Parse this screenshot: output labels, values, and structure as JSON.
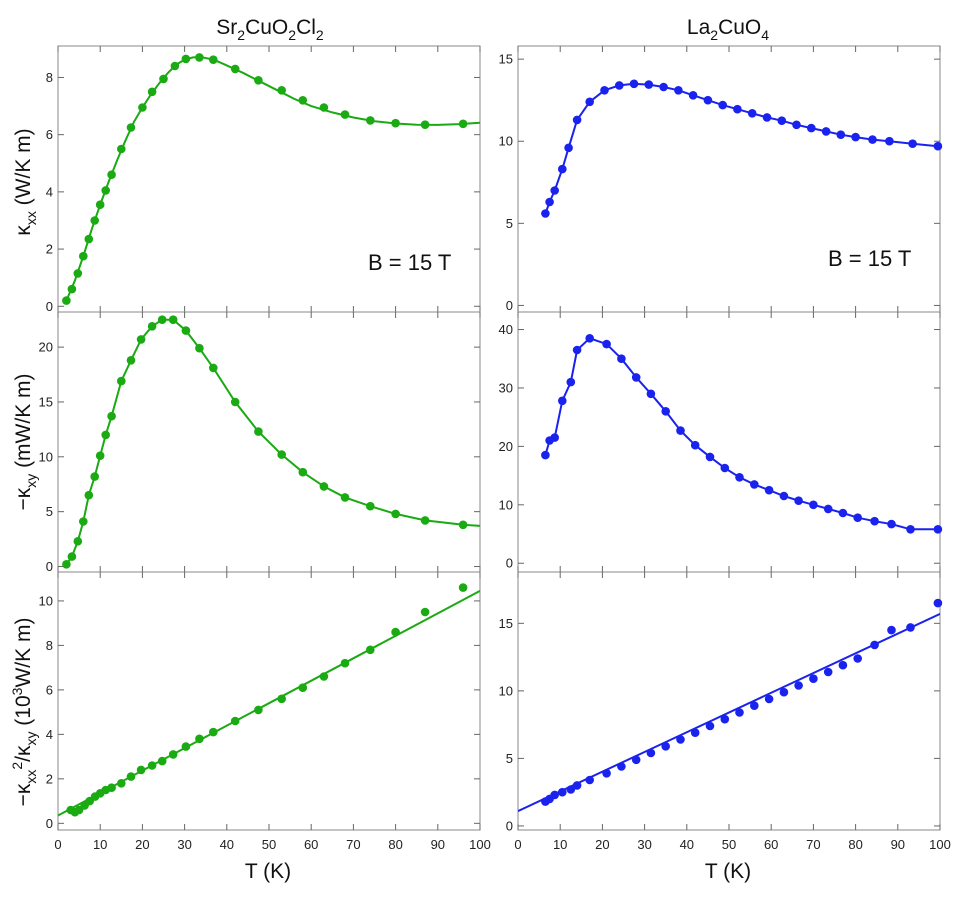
{
  "colors": {
    "green": "#1aaa12",
    "blue": "#1a22ee",
    "frame": "#888888"
  },
  "columns": [
    {
      "title_main": "Sr",
      "title_sub1": "2",
      "title_mid": "CuO",
      "title_sub2": "2",
      "title_end": "Cl",
      "title_sub3": "2"
    },
    {
      "title_main": "La",
      "title_sub1": "2",
      "title_mid": "CuO",
      "title_sub2": "4",
      "title_end": "",
      "title_sub3": ""
    }
  ],
  "row_labels": {
    "r0": {
      "kappa": "κ",
      "sub": "xx",
      "rest": " (W/K m)"
    },
    "r1": {
      "minus": "−κ",
      "sub": "xy",
      "rest": " (mW/K m)"
    },
    "r2": {
      "minus": "−κ",
      "sub1": "xx",
      "sup": "2",
      "slash": "/κ",
      "sub2": "xy",
      "open": " (10",
      "sup2": "3",
      "rest": "W/K m)"
    }
  },
  "xlabel": "T (K)",
  "annotation": "B = 15 T",
  "chart_data": [
    {
      "type": "line",
      "panel": "kxx-Sr2CuO2Cl2",
      "color": "green",
      "ylim": [
        -0.2,
        9.1
      ],
      "yticks": [
        0,
        2,
        4,
        6,
        8
      ],
      "xlim": [
        0,
        100
      ],
      "x": [
        2,
        3.3,
        4.7,
        6,
        7.3,
        8.7,
        10,
        11.3,
        12.7,
        15,
        17.3,
        20,
        22.3,
        25,
        27.7,
        30.3,
        33.5,
        36.8,
        42,
        47.5,
        53,
        58,
        63,
        68,
        74,
        80,
        87,
        96
      ],
      "y": [
        0.2,
        0.6,
        1.15,
        1.75,
        2.35,
        3.0,
        3.55,
        4.05,
        4.6,
        5.5,
        6.25,
        6.95,
        7.5,
        7.95,
        8.4,
        8.65,
        8.7,
        8.62,
        8.3,
        7.9,
        7.55,
        7.2,
        6.95,
        6.7,
        6.5,
        6.4,
        6.35,
        6.38
      ],
      "fit_x": [
        2,
        4,
        6,
        8,
        10,
        12,
        14,
        16,
        18,
        20,
        22,
        24,
        26,
        28,
        30,
        32,
        34,
        36,
        38,
        40,
        44,
        48,
        52,
        56,
        60,
        65,
        70,
        75,
        80,
        85,
        90,
        95,
        100
      ],
      "fit_y": [
        0.2,
        0.9,
        1.75,
        2.7,
        3.55,
        4.35,
        5.1,
        5.8,
        6.45,
        6.95,
        7.4,
        7.8,
        8.15,
        8.45,
        8.62,
        8.7,
        8.71,
        8.65,
        8.55,
        8.42,
        8.15,
        7.85,
        7.55,
        7.25,
        7.0,
        6.78,
        6.6,
        6.47,
        6.39,
        6.35,
        6.34,
        6.37,
        6.42
      ]
    },
    {
      "type": "line",
      "panel": "kxx-La2CuO4",
      "color": "blue",
      "ylim": [
        -0.4,
        15.8
      ],
      "yticks": [
        0,
        5,
        10,
        15
      ],
      "xlim": [
        0,
        100
      ],
      "x": [
        6.5,
        7.5,
        8.7,
        10.5,
        12,
        14,
        17,
        20.5,
        24,
        27.5,
        31,
        34.5,
        38,
        41.5,
        45,
        48.5,
        52,
        55.5,
        59,
        62.5,
        66,
        69.5,
        73,
        76.5,
        80,
        84,
        88,
        93.5,
        99.5
      ],
      "y": [
        5.6,
        6.3,
        7.0,
        8.3,
        9.6,
        11.3,
        12.4,
        13.1,
        13.4,
        13.5,
        13.45,
        13.3,
        13.1,
        12.8,
        12.5,
        12.2,
        11.95,
        11.7,
        11.45,
        11.25,
        11.0,
        10.8,
        10.6,
        10.4,
        10.25,
        10.1,
        10.0,
        9.85,
        9.7
      ],
      "fit_x": [
        6.5,
        7.5,
        8.7,
        10.5,
        12,
        14,
        17,
        20.5,
        24,
        27.5,
        31,
        34.5,
        38,
        41.5,
        45,
        48.5,
        52,
        55.5,
        59,
        62.5,
        66,
        69.5,
        73,
        76.5,
        80,
        84,
        88,
        93.5,
        99.5
      ],
      "fit_y": [
        5.6,
        6.3,
        7.0,
        8.3,
        9.6,
        11.3,
        12.4,
        13.1,
        13.4,
        13.5,
        13.45,
        13.3,
        13.1,
        12.8,
        12.5,
        12.2,
        11.95,
        11.7,
        11.45,
        11.25,
        11.0,
        10.8,
        10.6,
        10.4,
        10.25,
        10.1,
        10.0,
        9.85,
        9.7
      ]
    },
    {
      "type": "line",
      "panel": "kxy-Sr2CuO2Cl2",
      "color": "green",
      "ylim": [
        -0.5,
        23.2
      ],
      "yticks": [
        0,
        5,
        10,
        15,
        20
      ],
      "xlim": [
        0,
        100
      ],
      "x": [
        2,
        3.3,
        4.7,
        6,
        7.3,
        8.7,
        10,
        11.3,
        12.7,
        15,
        17.3,
        19.7,
        22.3,
        24.7,
        27.3,
        30.3,
        33.5,
        36.8,
        42,
        47.5,
        53,
        58,
        63,
        68,
        74,
        80,
        87,
        96
      ],
      "y": [
        0.2,
        0.9,
        2.3,
        4.1,
        6.5,
        8.2,
        10.1,
        12.0,
        13.7,
        16.9,
        18.8,
        20.7,
        21.9,
        22.5,
        22.5,
        21.5,
        19.9,
        18.1,
        15.0,
        12.3,
        10.2,
        8.6,
        7.3,
        6.3,
        5.5,
        4.8,
        4.2,
        3.8
      ],
      "fit_x": [
        2,
        3.3,
        4.7,
        6,
        7.3,
        8.7,
        10,
        11.3,
        12.7,
        15,
        17.3,
        19.7,
        22.3,
        24.7,
        27.3,
        30.3,
        33.5,
        36.8,
        42,
        47.5,
        53,
        58,
        63,
        68,
        74,
        80,
        87,
        96,
        100
      ],
      "fit_y": [
        0.2,
        0.9,
        2.3,
        4.1,
        6.5,
        8.2,
        10.1,
        12.0,
        13.7,
        16.9,
        18.8,
        20.7,
        21.9,
        22.5,
        22.5,
        21.5,
        19.9,
        18.1,
        15.0,
        12.3,
        10.2,
        8.6,
        7.3,
        6.3,
        5.5,
        4.8,
        4.2,
        3.8,
        3.7
      ]
    },
    {
      "type": "line",
      "panel": "kxy-La2CuO4",
      "color": "blue",
      "ylim": [
        -1.5,
        43
      ],
      "yticks": [
        0,
        10,
        20,
        30,
        40
      ],
      "xlim": [
        0,
        100
      ],
      "x": [
        6.5,
        7.5,
        8.7,
        10.5,
        12.5,
        14,
        17,
        21,
        24.5,
        28,
        31.5,
        35,
        38.5,
        42,
        45.5,
        49,
        52.5,
        56,
        59.5,
        63,
        66.5,
        70,
        73.5,
        77,
        80.5,
        84.5,
        88.5,
        93,
        99.5
      ],
      "y": [
        18.5,
        21.0,
        21.5,
        27.8,
        31.0,
        36.5,
        38.5,
        37.5,
        35.0,
        31.8,
        29.0,
        26.0,
        22.7,
        20.2,
        18.2,
        16.3,
        14.7,
        13.5,
        12.5,
        11.5,
        10.7,
        10.0,
        9.3,
        8.6,
        7.8,
        7.2,
        6.7,
        5.8,
        5.8
      ],
      "fit_x": [
        6.5,
        7.5,
        8.7,
        10.5,
        12.5,
        14,
        17,
        21,
        24.5,
        28,
        31.5,
        35,
        38.5,
        42,
        45.5,
        49,
        52.5,
        56,
        59.5,
        63,
        66.5,
        70,
        73.5,
        77,
        80.5,
        84.5,
        88.5,
        93,
        99.5
      ],
      "fit_y": [
        18.5,
        21.0,
        21.5,
        27.8,
        31.0,
        36.5,
        38.5,
        37.5,
        35.0,
        31.8,
        29.0,
        26.0,
        22.7,
        20.2,
        18.2,
        16.3,
        14.7,
        13.5,
        12.5,
        11.5,
        10.7,
        10.0,
        9.3,
        8.6,
        7.8,
        7.2,
        6.7,
        5.8,
        5.8
      ]
    },
    {
      "type": "scatter",
      "panel": "ratio-Sr2CuO2Cl2",
      "color": "green",
      "ylim": [
        -0.3,
        11.3
      ],
      "yticks": [
        0,
        2,
        4,
        6,
        8,
        10
      ],
      "xlim": [
        0,
        100
      ],
      "x": [
        3,
        4,
        5,
        6.3,
        7.5,
        8.8,
        10,
        11.3,
        12.7,
        15,
        17.3,
        19.7,
        22.3,
        24.7,
        27.3,
        30.3,
        33.5,
        36.8,
        42,
        47.5,
        53,
        58,
        63,
        68,
        74,
        80,
        87,
        96
      ],
      "y": [
        0.6,
        0.5,
        0.6,
        0.8,
        1.0,
        1.2,
        1.35,
        1.5,
        1.6,
        1.8,
        2.1,
        2.4,
        2.6,
        2.8,
        3.1,
        3.45,
        3.8,
        4.1,
        4.6,
        5.1,
        5.6,
        6.1,
        6.6,
        7.2,
        7.8,
        8.6,
        9.5,
        10.6
      ],
      "fit_x": [
        0,
        100
      ],
      "fit_y": [
        0.35,
        10.45
      ]
    },
    {
      "type": "scatter",
      "panel": "ratio-La2CuO4",
      "color": "blue",
      "ylim": [
        -0.3,
        18.8
      ],
      "yticks": [
        0,
        5,
        10,
        15
      ],
      "xlim": [
        0,
        100
      ],
      "x": [
        6.5,
        7.5,
        8.7,
        10.5,
        12.5,
        14,
        17,
        21,
        24.5,
        28,
        31.5,
        35,
        38.5,
        42,
        45.5,
        49,
        52.5,
        56,
        59.5,
        63,
        66.5,
        70,
        73.5,
        77,
        80.5,
        84.5,
        88.5,
        93,
        99.5
      ],
      "y": [
        1.8,
        2.0,
        2.3,
        2.5,
        2.7,
        3.0,
        3.4,
        3.9,
        4.4,
        4.9,
        5.4,
        5.9,
        6.4,
        6.9,
        7.4,
        7.9,
        8.4,
        8.9,
        9.4,
        9.9,
        10.4,
        10.9,
        11.4,
        11.9,
        12.4,
        13.4,
        14.5,
        14.7,
        16.5
      ],
      "fit_x": [
        0,
        100
      ],
      "fit_y": [
        1.1,
        15.7
      ]
    }
  ],
  "xticks": [
    0,
    10,
    20,
    30,
    40,
    50,
    60,
    70,
    80,
    90,
    100
  ]
}
